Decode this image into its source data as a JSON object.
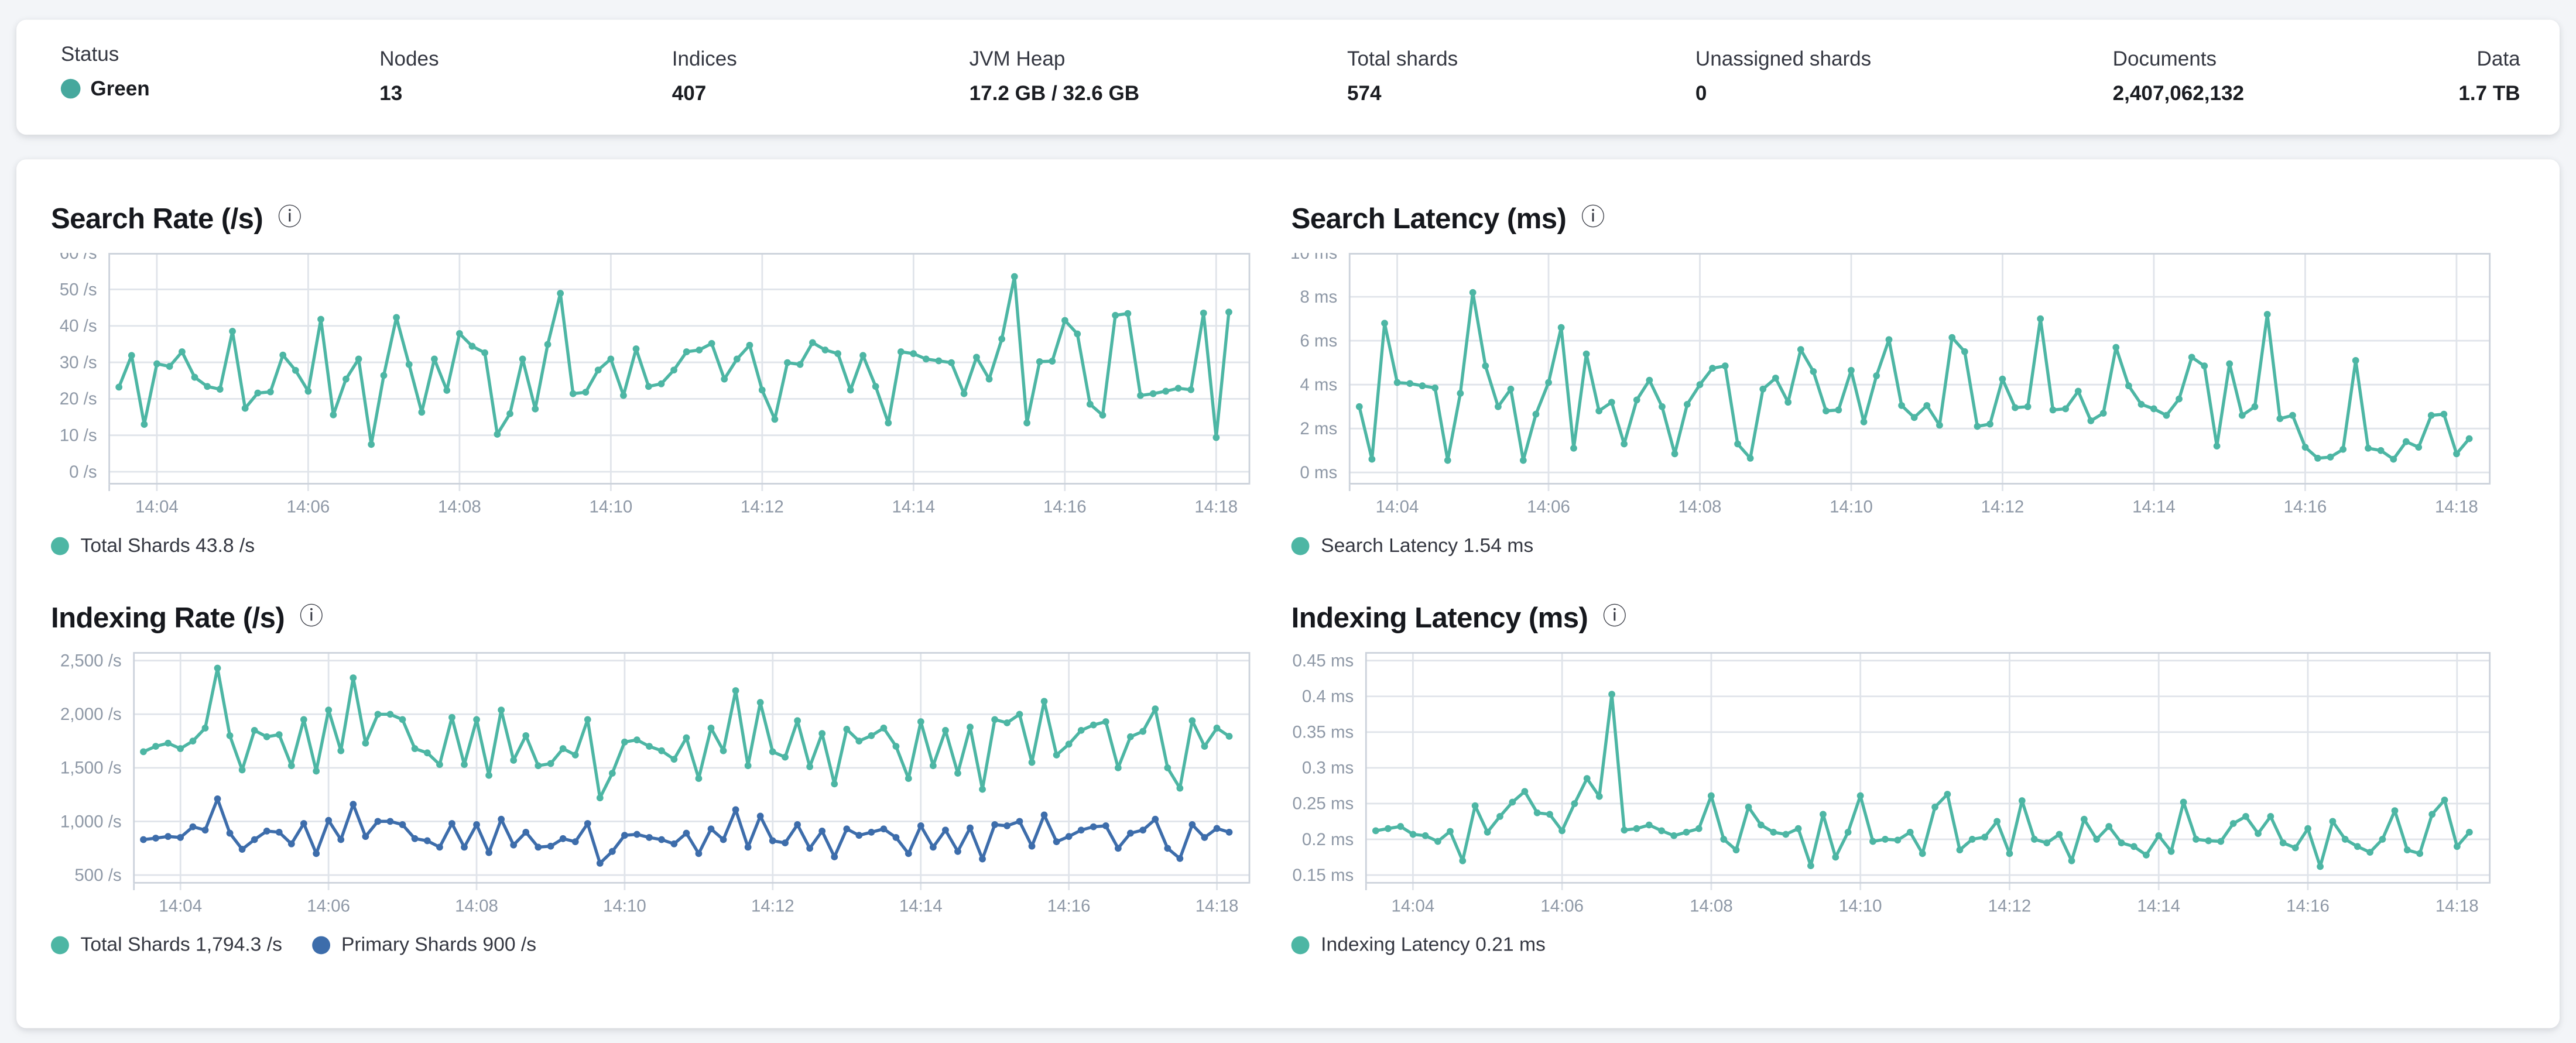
{
  "colors": {
    "teal": "#4db6a4",
    "blue": "#3d6dab",
    "status_green_dot": "#46a89d",
    "axis_text": "#8e98a6",
    "grid_line": "#e0e4ea",
    "plot_border": "#ccd2db"
  },
  "icons": {
    "info": "ⓘ",
    "status_dot": "circle",
    "legend_dot": "circle"
  },
  "summary_bar": {
    "stats": [
      {
        "label": "Status",
        "value": "Green",
        "has_dot": true,
        "dot_color": "#46a89d"
      },
      {
        "label": "Nodes",
        "value": "13"
      },
      {
        "label": "Indices",
        "value": "407"
      },
      {
        "label": "JVM Heap",
        "value": "17.2 GB / 32.6 GB"
      },
      {
        "label": "Total shards",
        "value": "574"
      },
      {
        "label": "Unassigned shards",
        "value": "0"
      },
      {
        "label": "Documents",
        "value": "2,407,062,132"
      },
      {
        "label": "Data",
        "value": "1.7 TB"
      }
    ]
  },
  "chart_data": [
    {
      "type": "line",
      "title": "Search Rate (/s)",
      "grid": true,
      "legend_position": "bottom",
      "x": {
        "domain": [
          3.36,
          18.45
        ],
        "ticks": [
          4,
          6,
          8,
          10,
          12,
          14,
          16,
          18
        ],
        "tick_labels": [
          "14:04",
          "14:06",
          "14:08",
          "14:10",
          "14:12",
          "14:14",
          "14:16",
          "14:18"
        ]
      },
      "y": {
        "domain": [
          -3.5,
          60
        ],
        "ticks": [
          0,
          10,
          20,
          30,
          40,
          50,
          60
        ],
        "tick_labels": [
          "0 /s",
          "10 /s",
          "20 /s",
          "30 /s",
          "40 /s",
          "50 /s",
          "60 /s"
        ]
      },
      "points_start_minute": 3.5,
      "points_interval_seconds": 10,
      "series": [
        {
          "name": "Total Shards",
          "legend_label": "Total Shards 43.8 /s",
          "latest_value": "43.8 /s",
          "color": "#4db6a4",
          "values": [
            23.2,
            31.9,
            13.0,
            29.6,
            28.9,
            32.9,
            25.9,
            23.4,
            22.6,
            38.5,
            17.4,
            21.6,
            21.9,
            32.0,
            27.8,
            22.1,
            41.8,
            15.6,
            25.4,
            30.9,
            7.5,
            26.4,
            42.3,
            29.4,
            16.3,
            30.9,
            22.3,
            37.9,
            34.4,
            32.6,
            10.3,
            15.9,
            30.9,
            17.2,
            34.9,
            48.9,
            21.4,
            21.8,
            27.9,
            30.9,
            20.9,
            33.7,
            23.4,
            24.1,
            27.9,
            32.9,
            33.4,
            35.2,
            25.4,
            30.9,
            34.7,
            22.4,
            14.4,
            29.9,
            29.4,
            35.4,
            33.4,
            32.4,
            22.4,
            31.9,
            23.4,
            13.4,
            32.9,
            32.4,
            30.9,
            30.4,
            29.9,
            21.4,
            31.4,
            25.4,
            36.4,
            53.5,
            13.4,
            30.2,
            30.3,
            41.5,
            37.8,
            18.5,
            15.5,
            42.9,
            43.4,
            20.9,
            21.4,
            22.1,
            22.9,
            22.5,
            43.5,
            9.4,
            43.8
          ]
        }
      ]
    },
    {
      "type": "line",
      "title": "Search Latency (ms)",
      "grid": true,
      "legend_position": "bottom",
      "x": {
        "domain": [
          3.36,
          18.45
        ],
        "ticks": [
          4,
          6,
          8,
          10,
          12,
          14,
          16,
          18
        ],
        "tick_labels": [
          "14:04",
          "14:06",
          "14:08",
          "14:10",
          "14:12",
          "14:14",
          "14:16",
          "14:18"
        ]
      },
      "y": {
        "domain": [
          -0.55,
          10
        ],
        "ticks": [
          0,
          2,
          4,
          6,
          8,
          10
        ],
        "tick_labels": [
          "0 ms",
          "2 ms",
          "4 ms",
          "6 ms",
          "8 ms",
          "10 ms"
        ]
      },
      "points_start_minute": 3.5,
      "points_interval_seconds": 10,
      "series": [
        {
          "name": "Search Latency",
          "legend_label": "Search Latency 1.54 ms",
          "latest_value": "1.54 ms",
          "color": "#4db6a4",
          "values": [
            3.0,
            0.6,
            6.8,
            4.1,
            4.05,
            3.95,
            3.85,
            0.55,
            3.6,
            8.2,
            4.85,
            3.0,
            3.8,
            0.55,
            2.65,
            4.1,
            6.6,
            1.1,
            5.4,
            2.8,
            3.2,
            1.3,
            3.3,
            4.2,
            3.0,
            0.85,
            3.1,
            4.0,
            4.75,
            4.85,
            1.3,
            0.65,
            3.8,
            4.3,
            3.2,
            5.6,
            4.6,
            2.8,
            2.85,
            4.65,
            2.3,
            4.4,
            6.05,
            3.05,
            2.5,
            3.05,
            2.15,
            6.15,
            5.5,
            2.1,
            2.2,
            4.25,
            2.95,
            3.0,
            7.0,
            2.85,
            2.9,
            3.7,
            2.35,
            2.7,
            5.7,
            3.95,
            3.1,
            2.9,
            2.6,
            3.35,
            5.25,
            4.85,
            1.2,
            4.95,
            2.6,
            3.0,
            7.2,
            2.45,
            2.6,
            1.15,
            0.65,
            0.7,
            1.05,
            5.1,
            1.1,
            1.0,
            0.6,
            1.4,
            1.15,
            2.6,
            2.65,
            0.85,
            1.54
          ]
        }
      ]
    },
    {
      "type": "line",
      "title": "Indexing Rate (/s)",
      "grid": true,
      "legend_position": "bottom",
      "x": {
        "domain": [
          3.36,
          18.45
        ],
        "ticks": [
          4,
          6,
          8,
          10,
          12,
          14,
          16,
          18
        ],
        "tick_labels": [
          "14:04",
          "14:06",
          "14:08",
          "14:10",
          "14:12",
          "14:14",
          "14:16",
          "14:18"
        ]
      },
      "y": {
        "domain": [
          420,
          2580
        ],
        "ticks": [
          500,
          1000,
          1500,
          2000,
          2500
        ],
        "tick_labels": [
          "500 /s",
          "1,000 /s",
          "1,500 /s",
          "2,000 /s",
          "2,500 /s"
        ]
      },
      "points_start_minute": 3.5,
      "points_interval_seconds": 10,
      "series": [
        {
          "name": "Total Shards",
          "legend_label": "Total Shards 1,794.3 /s",
          "latest_value": "1,794.3 /s",
          "color": "#4db6a4",
          "values": [
            1650,
            1700,
            1730,
            1680,
            1750,
            1870,
            2430,
            1800,
            1480,
            1850,
            1790,
            1810,
            1520,
            1950,
            1470,
            2040,
            1660,
            2340,
            1730,
            2000,
            2000,
            1950,
            1680,
            1640,
            1530,
            1970,
            1530,
            1950,
            1430,
            2040,
            1570,
            1800,
            1520,
            1540,
            1680,
            1620,
            1950,
            1220,
            1450,
            1740,
            1760,
            1700,
            1660,
            1580,
            1780,
            1400,
            1870,
            1660,
            2220,
            1520,
            2110,
            1650,
            1600,
            1940,
            1510,
            1820,
            1350,
            1860,
            1750,
            1800,
            1870,
            1700,
            1400,
            1930,
            1520,
            1850,
            1450,
            1880,
            1300,
            1950,
            1920,
            2000,
            1550,
            2120,
            1620,
            1720,
            1850,
            1900,
            1930,
            1500,
            1790,
            1840,
            2050,
            1500,
            1310,
            1940,
            1700,
            1870,
            1794.3
          ]
        },
        {
          "name": "Primary Shards",
          "legend_label": "Primary Shards 900 /s",
          "latest_value": "900 /s",
          "color": "#3d6dab",
          "values": [
            830,
            845,
            860,
            850,
            950,
            920,
            1210,
            890,
            740,
            830,
            910,
            900,
            790,
            980,
            700,
            1010,
            830,
            1160,
            860,
            1000,
            1000,
            970,
            840,
            820,
            760,
            980,
            760,
            970,
            710,
            1020,
            780,
            900,
            760,
            770,
            840,
            810,
            980,
            610,
            720,
            870,
            880,
            850,
            830,
            790,
            890,
            700,
            930,
            830,
            1110,
            760,
            1050,
            820,
            800,
            970,
            750,
            910,
            670,
            930,
            870,
            900,
            930,
            850,
            700,
            960,
            760,
            920,
            720,
            940,
            650,
            970,
            960,
            1000,
            770,
            1060,
            810,
            860,
            920,
            950,
            960,
            750,
            890,
            920,
            1020,
            750,
            655,
            970,
            850,
            935,
            900
          ]
        }
      ]
    },
    {
      "type": "line",
      "title": "Indexing Latency (ms)",
      "grid": true,
      "legend_position": "bottom",
      "x": {
        "domain": [
          3.36,
          18.45
        ],
        "ticks": [
          4,
          6,
          8,
          10,
          12,
          14,
          16,
          18
        ],
        "tick_labels": [
          "14:04",
          "14:06",
          "14:08",
          "14:10",
          "14:12",
          "14:14",
          "14:16",
          "14:18"
        ]
      },
      "y": {
        "domain": [
          0.138,
          0.462
        ],
        "ticks": [
          0.15,
          0.2,
          0.25,
          0.3,
          0.35,
          0.4,
          0.45
        ],
        "tick_labels": [
          "0.15 ms",
          "0.2 ms",
          "0.25 ms",
          "0.3 ms",
          "0.35 ms",
          "0.4 ms",
          "0.45 ms"
        ]
      },
      "points_start_minute": 3.5,
      "points_interval_seconds": 10,
      "series": [
        {
          "name": "Indexing Latency",
          "legend_label": "Indexing Latency 0.21 ms",
          "latest_value": "0.21 ms",
          "color": "#4db6a4",
          "values": [
            0.212,
            0.215,
            0.218,
            0.207,
            0.205,
            0.197,
            0.211,
            0.17,
            0.247,
            0.21,
            0.232,
            0.252,
            0.267,
            0.237,
            0.235,
            0.212,
            0.25,
            0.285,
            0.26,
            0.403,
            0.213,
            0.215,
            0.22,
            0.212,
            0.205,
            0.21,
            0.215,
            0.261,
            0.2,
            0.185,
            0.245,
            0.22,
            0.21,
            0.207,
            0.215,
            0.163,
            0.235,
            0.175,
            0.21,
            0.261,
            0.197,
            0.2,
            0.199,
            0.21,
            0.18,
            0.245,
            0.263,
            0.185,
            0.2,
            0.203,
            0.225,
            0.18,
            0.254,
            0.2,
            0.195,
            0.207,
            0.17,
            0.228,
            0.2,
            0.218,
            0.195,
            0.19,
            0.178,
            0.205,
            0.183,
            0.252,
            0.2,
            0.198,
            0.197,
            0.222,
            0.232,
            0.208,
            0.232,
            0.195,
            0.188,
            0.215,
            0.162,
            0.225,
            0.2,
            0.19,
            0.182,
            0.2,
            0.24,
            0.185,
            0.18,
            0.235,
            0.255,
            0.19,
            0.21
          ]
        }
      ]
    }
  ]
}
